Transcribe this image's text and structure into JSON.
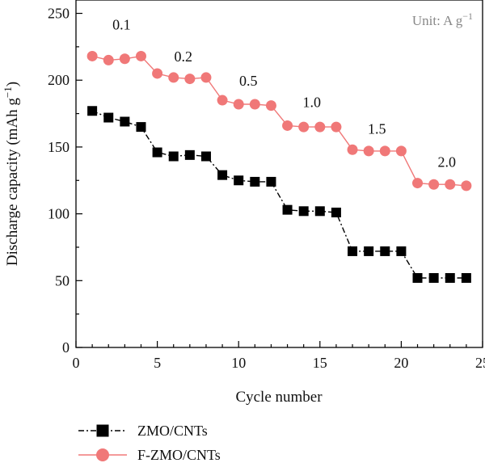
{
  "chart_data": {
    "type": "line",
    "xlabel": "Cycle number",
    "ylabel_main": "Discharge capacity (mAh g",
    "ylabel_sup": "−1",
    "ylabel_close": ")",
    "xlim": [
      0,
      25
    ],
    "ylim": [
      0,
      260
    ],
    "xticks": [
      0,
      5,
      10,
      15,
      20,
      25
    ],
    "yticks": [
      0,
      50,
      100,
      150,
      200,
      250
    ],
    "grid": false,
    "legend_position": "bottom-left",
    "unit_label_main": "Unit: A g",
    "unit_label_sup": "−1",
    "x": [
      1,
      2,
      3,
      4,
      5,
      6,
      7,
      8,
      9,
      10,
      11,
      12,
      13,
      14,
      15,
      16,
      17,
      18,
      19,
      20,
      21,
      22,
      23,
      24
    ],
    "series": [
      {
        "name": "ZMO/CNTs",
        "color": "#000000",
        "marker": "square",
        "line": "dashdot",
        "values": [
          177,
          172,
          169,
          165,
          146,
          143,
          144,
          143,
          129,
          125,
          124,
          124,
          103,
          102,
          102,
          101,
          72,
          72,
          72,
          72,
          52,
          52,
          52,
          52
        ]
      },
      {
        "name": "F-ZMO/CNTs",
        "color": "#f07878",
        "marker": "circle",
        "line": "solid",
        "values": [
          218,
          215,
          216,
          218,
          205,
          202,
          201,
          202,
          185,
          182,
          182,
          181,
          166,
          165,
          165,
          165,
          148,
          147,
          147,
          147,
          123,
          122,
          122,
          121
        ]
      }
    ],
    "annotations": [
      {
        "text": "0.1",
        "x": 2.8,
        "y": 238
      },
      {
        "text": "0.2",
        "x": 6.6,
        "y": 214
      },
      {
        "text": "0.5",
        "x": 10.6,
        "y": 196
      },
      {
        "text": "1.0",
        "x": 14.5,
        "y": 180
      },
      {
        "text": "1.5",
        "x": 18.5,
        "y": 160
      },
      {
        "text": "2.0",
        "x": 22.8,
        "y": 135
      }
    ]
  }
}
